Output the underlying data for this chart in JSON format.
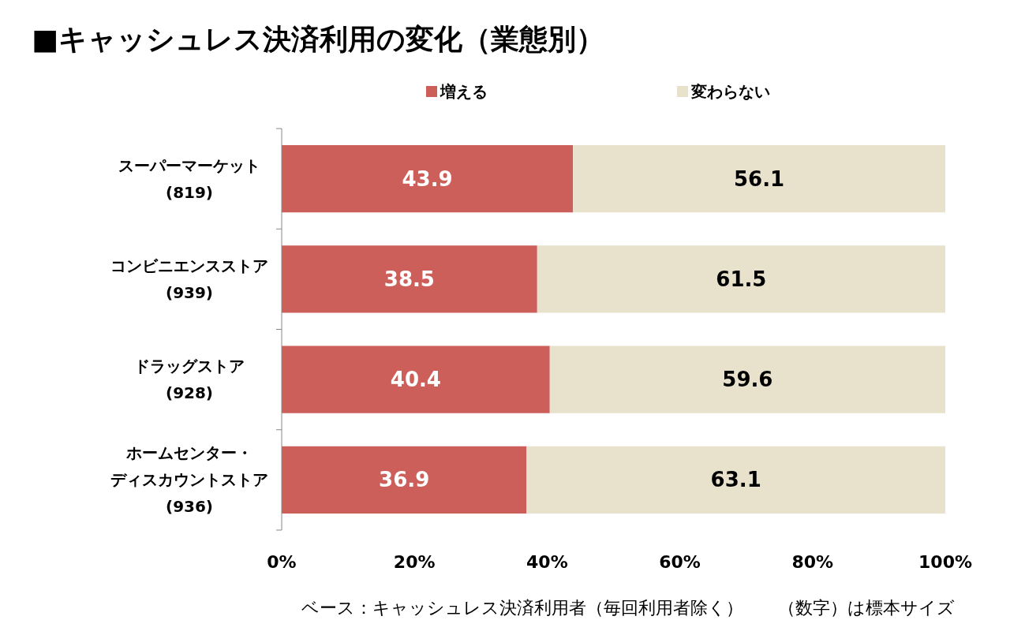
{
  "chart_data": {
    "type": "bar",
    "orientation": "horizontal",
    "stacked": true,
    "title": "■キャッシュレス決済利用の変化（業態別）",
    "categories": [
      "スーパーマーケット(819)",
      "コンビニエンスストア(939)",
      "ドラッグストア(928)",
      "ホームセンター・ディスカウントストア(936)"
    ],
    "series": [
      {
        "name": "増える",
        "color": "#cd5f5a",
        "values": [
          43.9,
          38.5,
          40.4,
          36.9
        ]
      },
      {
        "name": "変わらない",
        "color": "#e8e2cc",
        "values": [
          56.1,
          61.5,
          59.6,
          63.1
        ]
      }
    ],
    "xlim": [
      0,
      100
    ],
    "xticks": [
      {
        "value": 0,
        "label": "0%"
      },
      {
        "value": 20,
        "label": "20%"
      },
      {
        "value": 40,
        "label": "40%"
      },
      {
        "value": 60,
        "label": "60%"
      },
      {
        "value": 80,
        "label": "80%"
      },
      {
        "value": 100,
        "label": "100%"
      }
    ],
    "data_labels": true,
    "legend": "top",
    "grid": false,
    "annotations": [
      "ベース：キャッシュレス決済利用者（毎回利用者除く）　　（数字）は標本サイズ"
    ]
  }
}
